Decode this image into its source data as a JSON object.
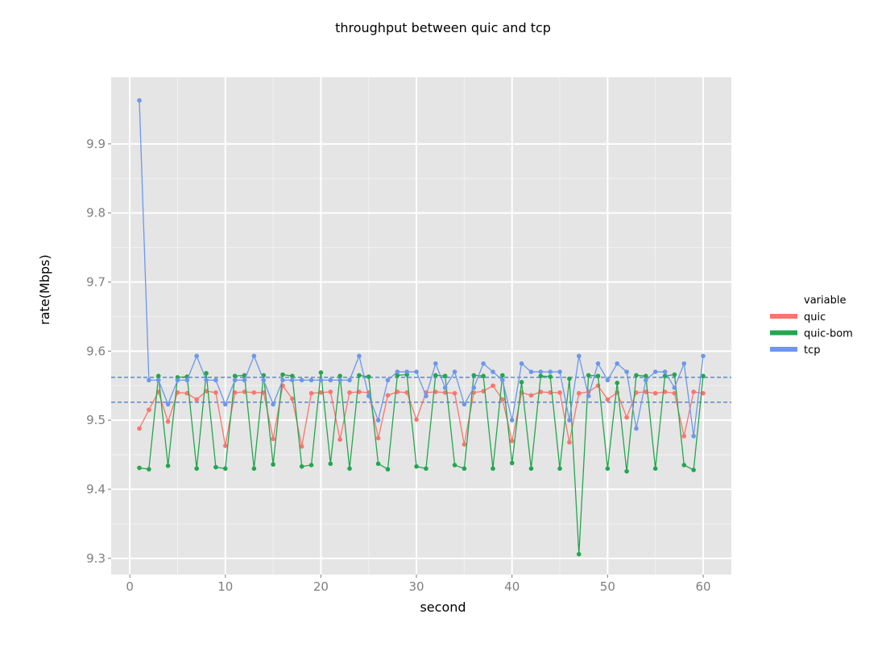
{
  "chart_data": {
    "type": "line",
    "title": "throughput between quic and tcp",
    "xlabel": "second",
    "ylabel": "rate(Mbps)",
    "xlim": [
      -1.95,
      62.95
    ],
    "ylim": [
      9.2765,
      9.9965
    ],
    "xticks": [
      0,
      10,
      20,
      30,
      40,
      50,
      60
    ],
    "yticks": [
      9.3,
      9.4,
      9.5,
      9.6,
      9.7,
      9.8,
      9.9
    ],
    "grid": true,
    "legend": {
      "title": "variable",
      "position": "right"
    },
    "hlines": [
      {
        "y": 9.562,
        "color": "#6b8fc9",
        "style": "dashed"
      },
      {
        "y": 9.526,
        "color": "#6b8fc9",
        "style": "dashed"
      }
    ],
    "x": [
      1,
      2,
      3,
      4,
      5,
      6,
      7,
      8,
      9,
      10,
      11,
      12,
      13,
      14,
      15,
      16,
      17,
      18,
      19,
      20,
      21,
      22,
      23,
      24,
      25,
      26,
      27,
      28,
      29,
      30,
      31,
      32,
      33,
      34,
      35,
      36,
      37,
      38,
      39,
      40,
      41,
      42,
      43,
      44,
      45,
      46,
      47,
      48,
      49,
      50,
      51,
      52,
      53,
      54,
      55,
      56,
      57,
      58,
      59,
      60
    ],
    "series": [
      {
        "name": "quic",
        "color": "#f8766d",
        "values": [
          9.488,
          9.515,
          9.541,
          9.498,
          9.54,
          9.539,
          9.53,
          9.542,
          9.54,
          9.463,
          9.54,
          9.541,
          9.54,
          9.54,
          9.473,
          9.55,
          9.531,
          9.462,
          9.539,
          9.54,
          9.541,
          9.472,
          9.54,
          9.541,
          9.54,
          9.474,
          9.536,
          9.541,
          9.54,
          9.501,
          9.54,
          9.541,
          9.54,
          9.539,
          9.465,
          9.54,
          9.542,
          9.55,
          9.53,
          9.47,
          9.54,
          9.536,
          9.541,
          9.54,
          9.54,
          9.468,
          9.539,
          9.541,
          9.55,
          9.53,
          9.54,
          9.504,
          9.54,
          9.541,
          9.539,
          9.541,
          9.539,
          9.477,
          9.541,
          9.539
        ]
      },
      {
        "name": "quic-bom",
        "color": "#23a64e",
        "values": [
          9.431,
          9.429,
          9.564,
          9.434,
          9.562,
          9.563,
          9.43,
          9.568,
          9.432,
          9.43,
          9.564,
          9.565,
          9.43,
          9.565,
          9.436,
          9.566,
          9.564,
          9.433,
          9.435,
          9.569,
          9.437,
          9.564,
          9.43,
          9.565,
          9.563,
          9.437,
          9.429,
          9.565,
          9.566,
          9.433,
          9.43,
          9.565,
          9.564,
          9.435,
          9.43,
          9.565,
          9.564,
          9.43,
          9.565,
          9.438,
          9.555,
          9.43,
          9.564,
          9.563,
          9.43,
          9.56,
          9.306,
          9.565,
          9.564,
          9.43,
          9.554,
          9.426,
          9.565,
          9.564,
          9.43,
          9.564,
          9.566,
          9.435,
          9.428,
          9.564
        ]
      },
      {
        "name": "tcp",
        "color": "#6d97ea",
        "values": [
          9.963,
          9.558,
          9.558,
          9.523,
          9.558,
          9.558,
          9.593,
          9.558,
          9.558,
          9.523,
          9.558,
          9.558,
          9.593,
          9.558,
          9.523,
          9.558,
          9.558,
          9.558,
          9.558,
          9.558,
          9.558,
          9.558,
          9.558,
          9.593,
          9.535,
          9.5,
          9.558,
          9.57,
          9.57,
          9.57,
          9.535,
          9.582,
          9.547,
          9.57,
          9.523,
          9.547,
          9.582,
          9.57,
          9.558,
          9.5,
          9.582,
          9.57,
          9.57,
          9.57,
          9.57,
          9.5,
          9.593,
          9.535,
          9.582,
          9.558,
          9.582,
          9.57,
          9.488,
          9.558,
          9.57,
          9.57,
          9.547,
          9.582,
          9.477,
          9.593
        ]
      }
    ]
  }
}
